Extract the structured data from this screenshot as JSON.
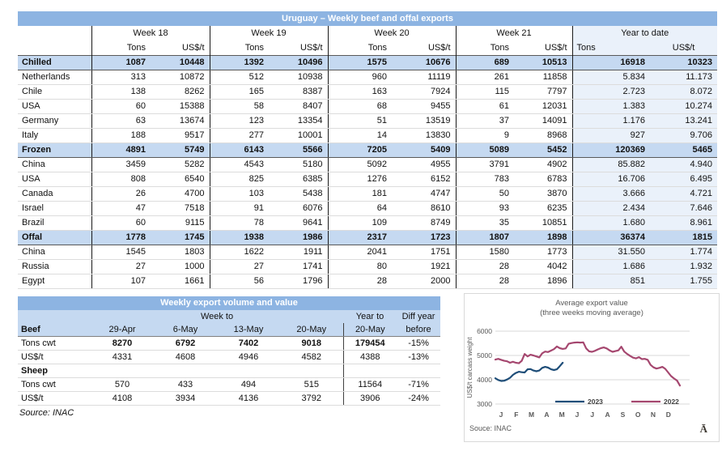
{
  "colors": {
    "title_bar": "#8DB4E2",
    "section_row_bg": "#C5D9F1",
    "year_to_date_bg": "#EAF1FA",
    "line_2023": "#1F4E79",
    "line_2022": "#A5476F"
  },
  "top_table": {
    "title": "Uruguay – Weekly beef and offal exports",
    "weeks": [
      "Week 18",
      "Week 19",
      "Week 20",
      "Week 21"
    ],
    "ytd_label": "Year to date",
    "tons_label": "Tons",
    "usd_label": "US$/t",
    "rows": [
      {
        "label": "Chilled",
        "section": true,
        "values": [
          "1087",
          "10448",
          "1392",
          "10496",
          "1575",
          "10676",
          "689",
          "10513",
          "16918",
          "10323"
        ]
      },
      {
        "label": "Netherlands",
        "section": false,
        "values": [
          "313",
          "10872",
          "512",
          "10938",
          "960",
          "11119",
          "261",
          "11858",
          "5.834",
          "11.173"
        ]
      },
      {
        "label": "Chile",
        "section": false,
        "values": [
          "138",
          "8262",
          "165",
          "8387",
          "163",
          "7924",
          "115",
          "7797",
          "2.723",
          "8.072"
        ]
      },
      {
        "label": "USA",
        "section": false,
        "values": [
          "60",
          "15388",
          "58",
          "8407",
          "68",
          "9455",
          "61",
          "12031",
          "1.383",
          "10.274"
        ]
      },
      {
        "label": "Germany",
        "section": false,
        "values": [
          "63",
          "13674",
          "123",
          "13354",
          "51",
          "13519",
          "37",
          "14091",
          "1.176",
          "13.241"
        ]
      },
      {
        "label": "Italy",
        "section": false,
        "values": [
          "188",
          "9517",
          "277",
          "10001",
          "14",
          "13830",
          "9",
          "8968",
          "927",
          "9.706"
        ]
      },
      {
        "label": "Frozen",
        "section": true,
        "values": [
          "4891",
          "5749",
          "6143",
          "5566",
          "7205",
          "5409",
          "5089",
          "5452",
          "120369",
          "5465"
        ]
      },
      {
        "label": "China",
        "section": false,
        "values": [
          "3459",
          "5282",
          "4543",
          "5180",
          "5092",
          "4955",
          "3791",
          "4902",
          "85.882",
          "4.940"
        ]
      },
      {
        "label": "USA",
        "section": false,
        "values": [
          "808",
          "6540",
          "825",
          "6385",
          "1276",
          "6152",
          "783",
          "6783",
          "16.706",
          "6.495"
        ]
      },
      {
        "label": "Canada",
        "section": false,
        "values": [
          "26",
          "4700",
          "103",
          "5438",
          "181",
          "4747",
          "50",
          "3870",
          "3.666",
          "4.721"
        ]
      },
      {
        "label": "Israel",
        "section": false,
        "values": [
          "47",
          "7518",
          "91",
          "6076",
          "64",
          "8610",
          "93",
          "6235",
          "2.434",
          "7.646"
        ]
      },
      {
        "label": "Brazil",
        "section": false,
        "values": [
          "60",
          "9115",
          "78",
          "9641",
          "109",
          "8749",
          "35",
          "10851",
          "1.680",
          "8.961"
        ]
      },
      {
        "label": "Offal",
        "section": true,
        "values": [
          "1778",
          "1745",
          "1938",
          "1986",
          "2317",
          "1723",
          "1807",
          "1898",
          "36374",
          "1815"
        ]
      },
      {
        "label": "China",
        "section": false,
        "values": [
          "1545",
          "1803",
          "1622",
          "1911",
          "2041",
          "1751",
          "1580",
          "1773",
          "31.550",
          "1.774"
        ]
      },
      {
        "label": "Russia",
        "section": false,
        "values": [
          "27",
          "1000",
          "27",
          "1741",
          "80",
          "1921",
          "28",
          "4042",
          "1.686",
          "1.932"
        ]
      },
      {
        "label": "Egypt",
        "section": false,
        "values": [
          "107",
          "1661",
          "56",
          "1796",
          "28",
          "2000",
          "28",
          "1896",
          "851",
          "1.755"
        ]
      }
    ]
  },
  "bottom_table": {
    "title": "Weekly export volume and value",
    "week_to_label": "Week to",
    "year_to_label": "Year to",
    "diff_label_top": "Diff year",
    "diff_label_bottom": "before",
    "beef_label": "Beef",
    "date_headers": [
      "29-Apr",
      "6-May",
      "13-May",
      "20-May"
    ],
    "year_date_header": "20-May",
    "rows": [
      {
        "label": "Tons cwt",
        "bold_values": true,
        "section": false,
        "values": [
          "8270",
          "6792",
          "7402",
          "9018",
          "179454",
          "-15%"
        ]
      },
      {
        "label": "US$/t",
        "bold_values": false,
        "section": false,
        "values": [
          "4331",
          "4608",
          "4946",
          "4582",
          "4388",
          "-13%"
        ]
      },
      {
        "label": "Sheep",
        "bold_values": false,
        "section": true,
        "values": [
          "",
          "",
          "",
          "",
          "",
          ""
        ]
      },
      {
        "label": "Tons cwt",
        "bold_values": false,
        "section": false,
        "values": [
          "570",
          "433",
          "494",
          "515",
          "11564",
          "-71%"
        ]
      },
      {
        "label": "US$/t",
        "bold_values": false,
        "section": false,
        "values": [
          "4108",
          "3934",
          "4136",
          "3792",
          "3906",
          "-24%"
        ]
      }
    ],
    "source": "Source: INAC"
  },
  "chart_data": {
    "type": "line",
    "title": "Average export value",
    "subtitle": "(three weeks moving average)",
    "ylabel": "US$/t carcass weight",
    "ylim": [
      3000,
      6000
    ],
    "yticks": [
      3000,
      4000,
      5000,
      6000
    ],
    "xticklabels": [
      "J",
      "F",
      "M",
      "A",
      "M",
      "J",
      "J",
      "A",
      "S",
      "O",
      "N",
      "D"
    ],
    "grid": "horizontal",
    "legend_position": "bottom-inside",
    "source": "Souce: INAC",
    "watermark": "Ā",
    "series": [
      {
        "name": "2023",
        "color": "#1F4E79",
        "values": [
          4060,
          3990,
          3950,
          3960,
          4010,
          4080,
          4200,
          4280,
          4330,
          4310,
          4300,
          4430,
          4440,
          4380,
          4350,
          4380,
          4490,
          4530,
          4500,
          4430,
          4400,
          4430,
          4560,
          4700
        ]
      },
      {
        "name": "2022",
        "color": "#A5476F",
        "values": [
          4830,
          4860,
          4820,
          4780,
          4760,
          4700,
          4740,
          4700,
          4680,
          4780,
          5060,
          4960,
          5030,
          5000,
          4960,
          4920,
          5090,
          5160,
          5140,
          5200,
          5260,
          5370,
          5300,
          5270,
          5290,
          5480,
          5510,
          5530,
          5540,
          5530,
          5540,
          5290,
          5170,
          5150,
          5190,
          5250,
          5300,
          5330,
          5290,
          5210,
          5150,
          5180,
          5210,
          5360,
          5160,
          5060,
          4980,
          4910,
          4880,
          4930,
          4850,
          4860,
          4820,
          4610,
          4510,
          4460,
          4490,
          4530,
          4450,
          4300,
          4150,
          4050,
          3970,
          3760
        ]
      }
    ]
  }
}
